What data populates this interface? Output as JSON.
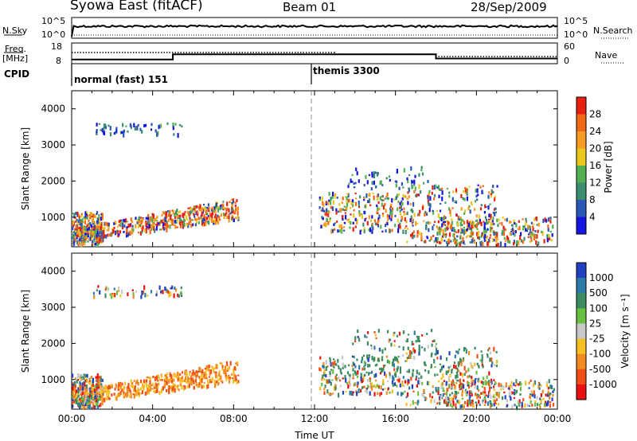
{
  "header": {
    "station": "Syowa East (fitACF)",
    "beam": "Beam 01",
    "date": "28/Sep/2009"
  },
  "top_panels": {
    "nsky_label": "N.Sky",
    "nsearch_label": "N.Search",
    "noise_ticks": [
      "10^5",
      "10^0"
    ],
    "freq_label_1": "Freq.",
    "freq_label_2": "[MHz]",
    "freq_ticks": [
      "18",
      "8"
    ],
    "nave_label": "Nave",
    "nave_ticks": [
      "60",
      "0"
    ],
    "cpid_label": "CPID",
    "cpid_segments": [
      {
        "name": "normal (fast) 151",
        "start_hour": 0
      },
      {
        "name": "themis 3300",
        "start_hour": 12
      }
    ],
    "freq_steps": [
      {
        "from": 0,
        "to": 5,
        "freq": 10.0
      },
      {
        "from": 5,
        "to": 18,
        "freq": 12.5
      },
      {
        "from": 18,
        "to": 24,
        "freq": 10.5
      }
    ]
  },
  "colors": {
    "power_scale": [
      "#1515e0",
      "#2a56b8",
      "#3a8e6e",
      "#52b052",
      "#e8c81e",
      "#f59a22",
      "#f06a18",
      "#e82010"
    ],
    "velocity_scale": [
      "#2040c0",
      "#2c7aa8",
      "#3d8c60",
      "#68c040",
      "#c8c8c8",
      "#f5c020",
      "#f08a22",
      "#f05018",
      "#e81010"
    ]
  },
  "chart_data": [
    {
      "type": "heatmap",
      "title": "Power",
      "ylabel": "Slant Range [km]",
      "xlabel": "",
      "y_ticks": [
        "1000",
        "2000",
        "3000",
        "4000"
      ],
      "ylim": [
        180,
        4500
      ],
      "x_ticks": [
        "00:00",
        "04:00",
        "08:00",
        "12:00",
        "16:00",
        "20:00",
        "00:00"
      ],
      "xlim_hours": [
        0,
        24
      ],
      "colorbar_label": "Power [dB]",
      "colorbar_ticks": [
        "4",
        "8",
        "12",
        "16",
        "20",
        "24",
        "28"
      ],
      "scatter_regions": [
        {
          "t": [
            0,
            8.2
          ],
          "r": [
            250,
            1500
          ],
          "mode": "ramp"
        },
        {
          "t": [
            0,
            1.5
          ],
          "r": [
            250,
            1150
          ],
          "mode": "fill"
        },
        {
          "t": [
            1,
            5.5
          ],
          "r": [
            3300,
            3600
          ],
          "mode": "sparse"
        },
        {
          "t": [
            12.2,
            16.5
          ],
          "r": [
            600,
            1700
          ],
          "mode": "fill"
        },
        {
          "t": [
            16.5,
            21
          ],
          "r": [
            300,
            1900
          ],
          "mode": "fill"
        },
        {
          "t": [
            13.5,
            18
          ],
          "r": [
            1800,
            2400
          ],
          "mode": "sparse"
        },
        {
          "t": [
            18,
            23.8
          ],
          "r": [
            250,
            1000
          ],
          "mode": "fill"
        }
      ]
    },
    {
      "type": "heatmap",
      "title": "Velocity",
      "ylabel": "Slant Range [km]",
      "xlabel": "Time UT",
      "y_ticks": [
        "1000",
        "2000",
        "3000",
        "4000"
      ],
      "ylim": [
        180,
        4500
      ],
      "x_ticks": [
        "00:00",
        "04:00",
        "08:00",
        "12:00",
        "16:00",
        "20:00",
        "00:00"
      ],
      "xlim_hours": [
        0,
        24
      ],
      "colorbar_label": "Velocity [m s⁻¹]",
      "colorbar_ticks": [
        "1000",
        "500",
        "100",
        "25",
        "-25",
        "-100",
        "-500",
        "-1000"
      ],
      "scatter_regions": [
        {
          "t": [
            0,
            8.2
          ],
          "r": [
            250,
            1500
          ],
          "mode": "ramp"
        },
        {
          "t": [
            0,
            1.5
          ],
          "r": [
            250,
            1150
          ],
          "mode": "fill"
        },
        {
          "t": [
            1,
            5.5
          ],
          "r": [
            3300,
            3600
          ],
          "mode": "sparse"
        },
        {
          "t": [
            12.2,
            16.5
          ],
          "r": [
            600,
            1700
          ],
          "mode": "fill"
        },
        {
          "t": [
            16.5,
            21
          ],
          "r": [
            300,
            1900
          ],
          "mode": "fill"
        },
        {
          "t": [
            13.5,
            18
          ],
          "r": [
            1800,
            2400
          ],
          "mode": "sparse"
        },
        {
          "t": [
            18,
            23.8
          ],
          "r": [
            250,
            1000
          ],
          "mode": "fill"
        }
      ]
    }
  ]
}
